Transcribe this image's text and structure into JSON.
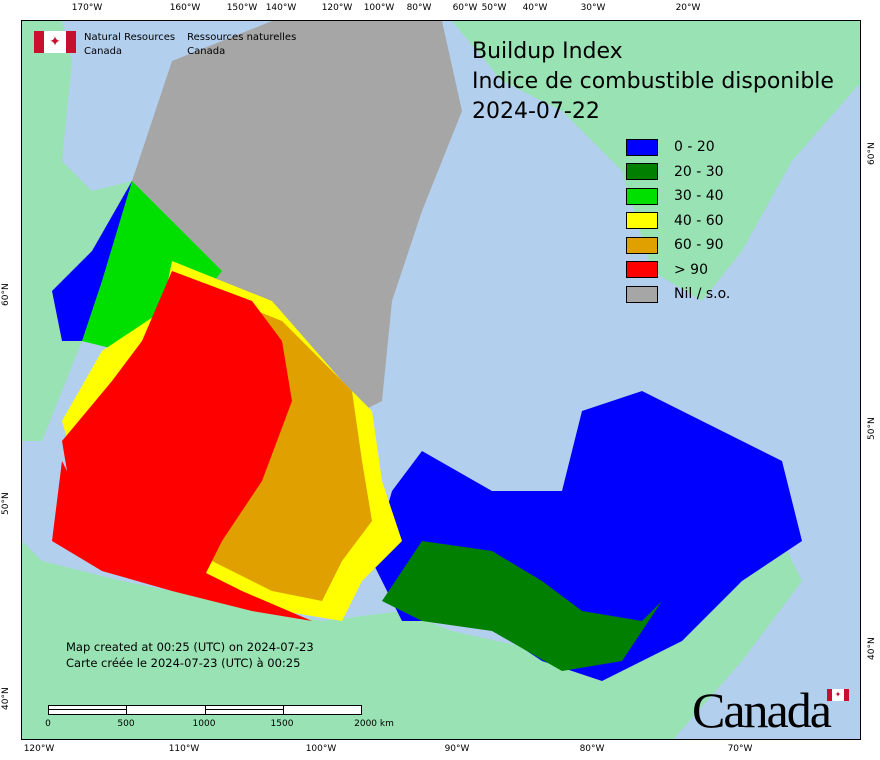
{
  "header": {
    "agency_en": [
      "Natural Resources",
      "Canada"
    ],
    "agency_fr": [
      "Ressources naturelles",
      "Canada"
    ]
  },
  "title": {
    "line1": "Buildup Index",
    "line2": "Indice de combustible disponible",
    "date": "2024-07-22"
  },
  "legend": [
    {
      "label": "0 - 20",
      "color": "#0000ff"
    },
    {
      "label": "20 - 30",
      "color": "#007f00"
    },
    {
      "label": "30 - 40",
      "color": "#00e000"
    },
    {
      "label": "40 - 60",
      "color": "#ffff00"
    },
    {
      "label": "60 - 90",
      "color": "#e0a000"
    },
    {
      "label": "> 90",
      "color": "#ff0000"
    },
    {
      "label": "Nil / s.o.",
      "color": "#a6a6a6"
    }
  ],
  "note": {
    "en": "Map created at 00:25 (UTC) on 2024-07-23",
    "fr": "Carte créée le 2024-07-23 (UTC) à 00:25"
  },
  "scale": {
    "labels": [
      "0",
      "500",
      "1000",
      "1500",
      "2000  km"
    ]
  },
  "ticks": {
    "top": [
      "170°W",
      "160°W",
      "150°W",
      "140°W",
      "120°W",
      "100°W",
      "80°W",
      "60°W",
      "50°W",
      "40°W",
      "30°W",
      "20°W"
    ],
    "bottom": [
      "120°W",
      "110°W",
      "100°W",
      "90°W",
      "80°W",
      "70°W"
    ],
    "left": [
      "60°N",
      "50°N",
      "40°N"
    ],
    "right": [
      "60°N",
      "50°N",
      "40°N"
    ]
  },
  "wordmark": "Canada",
  "colors": {
    "water": "#b3cfee",
    "foreign_land": "#99e2b4",
    "nil": "#a6a6a6"
  }
}
